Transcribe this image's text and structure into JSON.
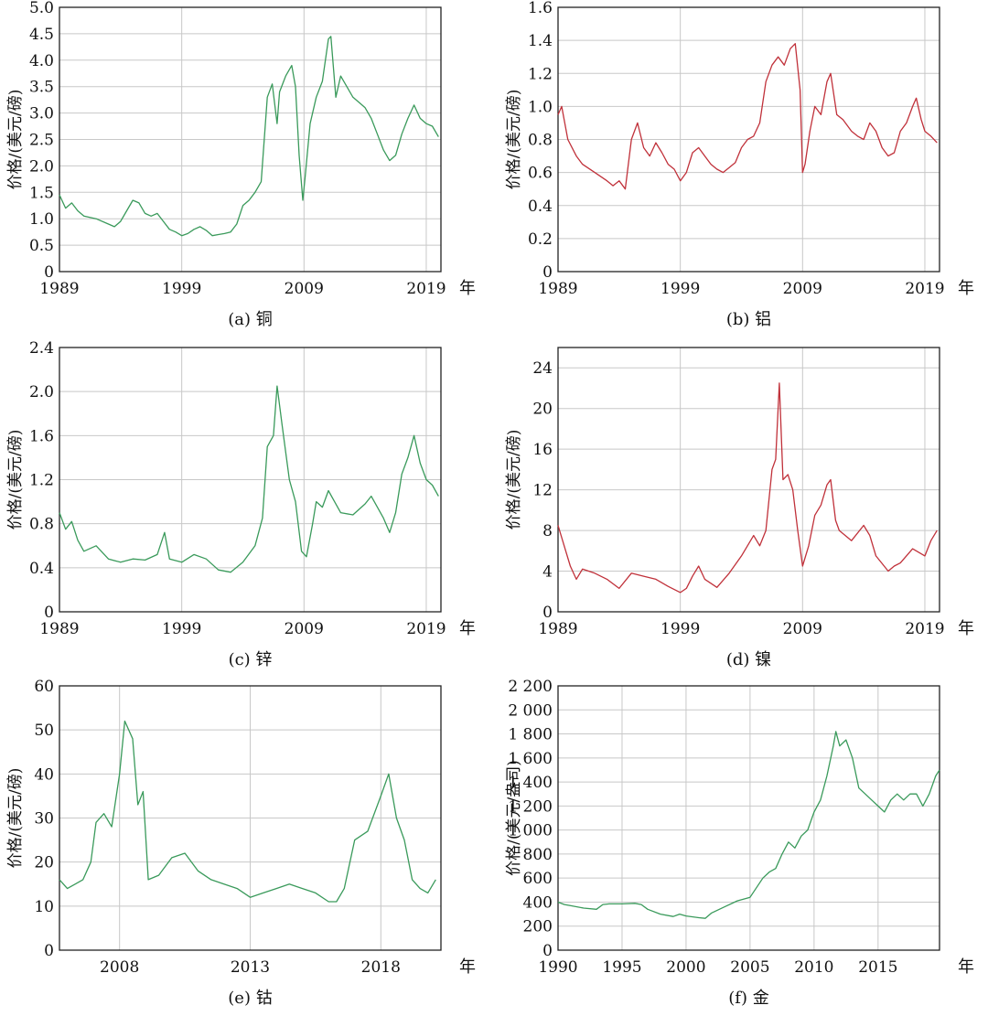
{
  "chart_data": [
    {
      "type": "line",
      "caption": "(a) 铜",
      "ylabel": "价格/(美元/磅)",
      "unit": "年",
      "color": "#3a9a5b",
      "xlim": [
        1989,
        2020.2
      ],
      "ylim": [
        0,
        5
      ],
      "yticks": [
        0,
        0.5,
        1.0,
        1.5,
        2.0,
        2.5,
        3.0,
        3.5,
        4.0,
        4.5,
        5.0
      ],
      "ytick_labels": [
        "0",
        "0.5",
        "1.0",
        "1.5",
        "2.0",
        "2.5",
        "3.0",
        "3.5",
        "4.0",
        "4.5",
        "5.0"
      ],
      "xticks": [
        1989,
        1999,
        2009,
        2019
      ],
      "xtick_labels": [
        "1989",
        "1999",
        "2009",
        "2019"
      ],
      "x": [
        1989,
        1989.5,
        1990,
        1990.5,
        1991,
        1992,
        1993,
        1993.5,
        1994,
        1994.5,
        1995,
        1995.5,
        1996,
        1996.5,
        1997,
        1997.5,
        1998,
        1998.5,
        1999,
        1999.5,
        2000,
        2000.5,
        2001,
        2001.5,
        2002,
        2002.5,
        2003,
        2003.5,
        2004,
        2004.5,
        2005,
        2005.5,
        2006,
        2006.4,
        2006.8,
        2007,
        2007.5,
        2008,
        2008.3,
        2008.6,
        2008.9,
        2009.1,
        2009.5,
        2010,
        2010.5,
        2011,
        2011.2,
        2011.6,
        2012,
        2012.5,
        2013,
        2013.5,
        2014,
        2014.5,
        2015,
        2015.5,
        2016,
        2016.5,
        2017,
        2017.5,
        2018,
        2018.5,
        2019,
        2019.5,
        2020
      ],
      "y": [
        1.45,
        1.2,
        1.3,
        1.15,
        1.05,
        1.0,
        0.9,
        0.85,
        0.95,
        1.15,
        1.35,
        1.3,
        1.1,
        1.05,
        1.1,
        0.95,
        0.8,
        0.75,
        0.68,
        0.72,
        0.8,
        0.85,
        0.78,
        0.68,
        0.7,
        0.72,
        0.75,
        0.9,
        1.25,
        1.35,
        1.5,
        1.7,
        3.3,
        3.55,
        2.8,
        3.4,
        3.7,
        3.9,
        3.5,
        2.2,
        1.35,
        1.8,
        2.8,
        3.3,
        3.6,
        4.4,
        4.45,
        3.3,
        3.7,
        3.5,
        3.3,
        3.2,
        3.1,
        2.9,
        2.6,
        2.3,
        2.1,
        2.2,
        2.6,
        2.9,
        3.15,
        2.9,
        2.8,
        2.75,
        2.55
      ]
    },
    {
      "type": "line",
      "caption": "(b) 铝",
      "ylabel": "价格/(美元/磅)",
      "unit": "年",
      "color": "#c0313a",
      "xlim": [
        1989,
        2020.2
      ],
      "ylim": [
        0,
        1.6
      ],
      "yticks": [
        0,
        0.2,
        0.4,
        0.6,
        0.8,
        1.0,
        1.2,
        1.4,
        1.6
      ],
      "ytick_labels": [
        "0",
        "0.2",
        "0.4",
        "0.6",
        "0.8",
        "1.0",
        "1.2",
        "1.4",
        "1.6"
      ],
      "xticks": [
        1989,
        1999,
        2009,
        2019
      ],
      "xtick_labels": [
        "1989",
        "1999",
        "2009",
        "2019"
      ],
      "x": [
        1989,
        1989.3,
        1989.8,
        1990.5,
        1991,
        1992,
        1993,
        1993.5,
        1994,
        1994.5,
        1995,
        1995.5,
        1996,
        1996.5,
        1997,
        1997.5,
        1998,
        1998.5,
        1999,
        1999.5,
        2000,
        2000.5,
        2001,
        2001.5,
        2002,
        2002.5,
        2003,
        2003.5,
        2004,
        2004.5,
        2005,
        2005.5,
        2006,
        2006.5,
        2007,
        2007.5,
        2008,
        2008.4,
        2008.8,
        2009,
        2009.2,
        2009.6,
        2010,
        2010.5,
        2011,
        2011.3,
        2011.8,
        2012.3,
        2013,
        2013.5,
        2014,
        2014.5,
        2015,
        2015.5,
        2016,
        2016.5,
        2017,
        2017.5,
        2018,
        2018.3,
        2018.7,
        2019,
        2019.5,
        2020
      ],
      "y": [
        0.95,
        1.0,
        0.8,
        0.7,
        0.65,
        0.6,
        0.55,
        0.52,
        0.55,
        0.5,
        0.8,
        0.9,
        0.75,
        0.7,
        0.78,
        0.72,
        0.65,
        0.62,
        0.55,
        0.6,
        0.72,
        0.75,
        0.7,
        0.65,
        0.62,
        0.6,
        0.63,
        0.66,
        0.75,
        0.8,
        0.82,
        0.9,
        1.15,
        1.25,
        1.3,
        1.25,
        1.35,
        1.38,
        1.1,
        0.6,
        0.65,
        0.85,
        1.0,
        0.95,
        1.15,
        1.2,
        0.95,
        0.92,
        0.85,
        0.82,
        0.8,
        0.9,
        0.85,
        0.75,
        0.7,
        0.72,
        0.85,
        0.9,
        1.0,
        1.05,
        0.92,
        0.85,
        0.82,
        0.78
      ]
    },
    {
      "type": "line",
      "caption": "(c) 锌",
      "ylabel": "价格/(美元/磅)",
      "unit": "年",
      "color": "#3a9a5b",
      "xlim": [
        1989,
        2020.2
      ],
      "ylim": [
        0,
        2.4
      ],
      "yticks": [
        0,
        0.4,
        0.8,
        1.2,
        1.6,
        2.0,
        2.4
      ],
      "ytick_labels": [
        "0",
        "0.4",
        "0.8",
        "1.2",
        "1.6",
        "2.0",
        "2.4"
      ],
      "xticks": [
        1989,
        1999,
        2009,
        2019
      ],
      "xtick_labels": [
        "1989",
        "1999",
        "2009",
        "2019"
      ],
      "x": [
        1989,
        1989.5,
        1990,
        1990.5,
        1991,
        1992,
        1993,
        1994,
        1995,
        1996,
        1997,
        1997.6,
        1998,
        1999,
        2000,
        2001,
        2002,
        2003,
        2004,
        2005,
        2005.6,
        2006,
        2006.5,
        2006.8,
        2007.2,
        2007.8,
        2008.3,
        2008.8,
        2009.2,
        2009.7,
        2010,
        2010.5,
        2011,
        2011.5,
        2012,
        2013,
        2014,
        2014.5,
        2015.5,
        2016,
        2016.5,
        2017,
        2017.5,
        2018,
        2018.5,
        2019,
        2019.5,
        2020
      ],
      "y": [
        0.9,
        0.75,
        0.82,
        0.65,
        0.55,
        0.6,
        0.48,
        0.45,
        0.48,
        0.47,
        0.52,
        0.72,
        0.48,
        0.45,
        0.52,
        0.48,
        0.38,
        0.36,
        0.45,
        0.6,
        0.85,
        1.5,
        1.6,
        2.05,
        1.7,
        1.2,
        1.0,
        0.55,
        0.5,
        0.8,
        1.0,
        0.95,
        1.1,
        1.0,
        0.9,
        0.88,
        0.98,
        1.05,
        0.85,
        0.72,
        0.9,
        1.25,
        1.4,
        1.6,
        1.35,
        1.2,
        1.15,
        1.05
      ]
    },
    {
      "type": "line",
      "caption": "(d) 镍",
      "ylabel": "价格/(美元/磅)",
      "unit": "年",
      "color": "#c0313a",
      "xlim": [
        1989,
        2020.2
      ],
      "ylim": [
        0,
        26
      ],
      "yticks": [
        0,
        4,
        8,
        12,
        16,
        20,
        24
      ],
      "ytick_labels": [
        "0",
        "4",
        "8",
        "12",
        "16",
        "20",
        "24"
      ],
      "xticks": [
        1989,
        1999,
        2009,
        2019
      ],
      "xtick_labels": [
        "1989",
        "1999",
        "2009",
        "2019"
      ],
      "x": [
        1989,
        1989.5,
        1990,
        1990.5,
        1991,
        1992,
        1993,
        1994,
        1995,
        1996,
        1997,
        1998,
        1999,
        1999.5,
        2000,
        2000.5,
        2001,
        2002,
        2003,
        2004,
        2005,
        2005.5,
        2006,
        2006.5,
        2006.8,
        2007.1,
        2007.4,
        2007.8,
        2008.2,
        2008.6,
        2009,
        2009.5,
        2010,
        2010.5,
        2011,
        2011.3,
        2011.7,
        2012,
        2013,
        2014,
        2014.5,
        2015,
        2016,
        2016.5,
        2017,
        2018,
        2019,
        2019.5,
        2020
      ],
      "y": [
        8.5,
        6.5,
        4.5,
        3.2,
        4.2,
        3.8,
        3.2,
        2.3,
        3.8,
        3.5,
        3.2,
        2.5,
        1.9,
        2.3,
        3.5,
        4.5,
        3.2,
        2.4,
        3.8,
        5.5,
        7.5,
        6.5,
        8.0,
        14.0,
        15.0,
        22.5,
        13.0,
        13.5,
        12.0,
        8.0,
        4.5,
        6.5,
        9.5,
        10.5,
        12.5,
        13.0,
        9.0,
        8.0,
        7.0,
        8.5,
        7.5,
        5.5,
        4.0,
        4.5,
        4.8,
        6.2,
        5.5,
        7.0,
        8.0
      ]
    },
    {
      "type": "line",
      "caption": "(e) 钴",
      "ylabel": "价格/(美元/磅)",
      "unit": "年",
      "color": "#3a9a5b",
      "xlim": [
        2005.7,
        2020.3
      ],
      "ylim": [
        0,
        60
      ],
      "yticks": [
        0,
        10,
        20,
        30,
        40,
        50,
        60
      ],
      "ytick_labels": [
        "0",
        "10",
        "20",
        "30",
        "40",
        "50",
        "60"
      ],
      "xticks": [
        2008,
        2013,
        2018
      ],
      "xtick_labels": [
        "2008",
        "2013",
        "2018"
      ],
      "x": [
        2005.7,
        2006,
        2006.3,
        2006.6,
        2006.9,
        2007.1,
        2007.4,
        2007.7,
        2008,
        2008.2,
        2008.5,
        2008.7,
        2008.9,
        2009.1,
        2009.5,
        2010,
        2010.5,
        2011,
        2011.5,
        2012,
        2012.5,
        2013,
        2013.5,
        2014,
        2014.5,
        2015,
        2015.5,
        2016,
        2016.3,
        2016.6,
        2017,
        2017.5,
        2018,
        2018.3,
        2018.6,
        2018.9,
        2019.2,
        2019.5,
        2019.8,
        2020.1
      ],
      "y": [
        16,
        14,
        15,
        16,
        20,
        29,
        31,
        28,
        40,
        52,
        48,
        33,
        36,
        16,
        17,
        21,
        22,
        18,
        16,
        15,
        14,
        12,
        13,
        14,
        15,
        14,
        13,
        11,
        11,
        14,
        25,
        27,
        35,
        40,
        30,
        25,
        16,
        14,
        13,
        16
      ]
    },
    {
      "type": "line",
      "caption": "(f) 金",
      "ylabel": "价格/(美元/盎司)",
      "unit": "年",
      "color": "#3a9a5b",
      "xlim": [
        1990,
        2019.8
      ],
      "ylim": [
        0,
        2200
      ],
      "yticks": [
        0,
        200,
        400,
        600,
        800,
        1000,
        1200,
        1400,
        1600,
        1800,
        2000,
        2200
      ],
      "ytick_labels": [
        "0",
        "200",
        "400",
        "600",
        "800",
        "1 000",
        "1 200",
        "1 400",
        "1 600",
        "1 800",
        "2 000",
        "2 200"
      ],
      "xticks": [
        1990,
        1995,
        2000,
        2005,
        2010,
        2015
      ],
      "xtick_labels": [
        "1990",
        "1995",
        "2000",
        "2005",
        "2010",
        "2015"
      ],
      "x": [
        1990,
        1990.5,
        1991,
        1992,
        1993,
        1993.5,
        1994,
        1995,
        1996,
        1996.5,
        1997,
        1998,
        1999,
        1999.5,
        2000,
        2001,
        2001.5,
        2002,
        2003,
        2004,
        2005,
        2006,
        2006.5,
        2007,
        2007.5,
        2008,
        2008.5,
        2009,
        2009.5,
        2010,
        2010.5,
        2011,
        2011.5,
        2011.7,
        2012,
        2012.5,
        2013,
        2013.5,
        2014,
        2014.5,
        2015,
        2015.5,
        2016,
        2016.5,
        2017,
        2017.5,
        2018,
        2018.5,
        2019,
        2019.5,
        2019.8
      ],
      "y": [
        400,
        380,
        370,
        350,
        340,
        380,
        385,
        385,
        390,
        380,
        340,
        300,
        280,
        300,
        285,
        270,
        265,
        310,
        360,
        410,
        440,
        600,
        650,
        680,
        800,
        900,
        850,
        950,
        1000,
        1150,
        1250,
        1450,
        1700,
        1820,
        1700,
        1750,
        1600,
        1350,
        1300,
        1250,
        1200,
        1150,
        1250,
        1300,
        1250,
        1300,
        1300,
        1200,
        1300,
        1450,
        1500
      ]
    }
  ]
}
